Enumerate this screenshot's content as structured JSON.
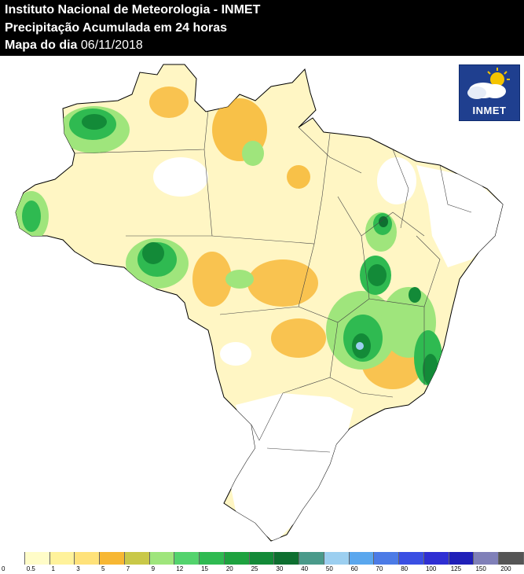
{
  "header": {
    "title": "Instituto Nacional de Meteorologia - INMET",
    "subtitle": "Precipitação Acumulada em 24 horas",
    "date_label": "Mapa do dia",
    "date_value": "06/11/2018"
  },
  "logo": {
    "text": "INMET",
    "icon": "cloud-sun-icon"
  },
  "legend": {
    "labels": [
      "0",
      "0.5",
      "1",
      "3",
      "5",
      "7",
      "9",
      "12",
      "15",
      "20",
      "25",
      "30",
      "40",
      "50",
      "60",
      "70",
      "80",
      "100",
      "125",
      "150",
      "200"
    ],
    "colors": [
      "#ffffff",
      "#fffcc8",
      "#fff29b",
      "#ffe27a",
      "#f7b733",
      "#c9c848",
      "#9fe57c",
      "#53d36d",
      "#2fba51",
      "#1ea23f",
      "#138a38",
      "#0e6f30",
      "#4a9a8a",
      "#9ccff0",
      "#5aa7ee",
      "#4c7be6",
      "#3a4fe3",
      "#2f2fd3",
      "#2020b8",
      "#8080b8",
      "#555555"
    ]
  }
}
